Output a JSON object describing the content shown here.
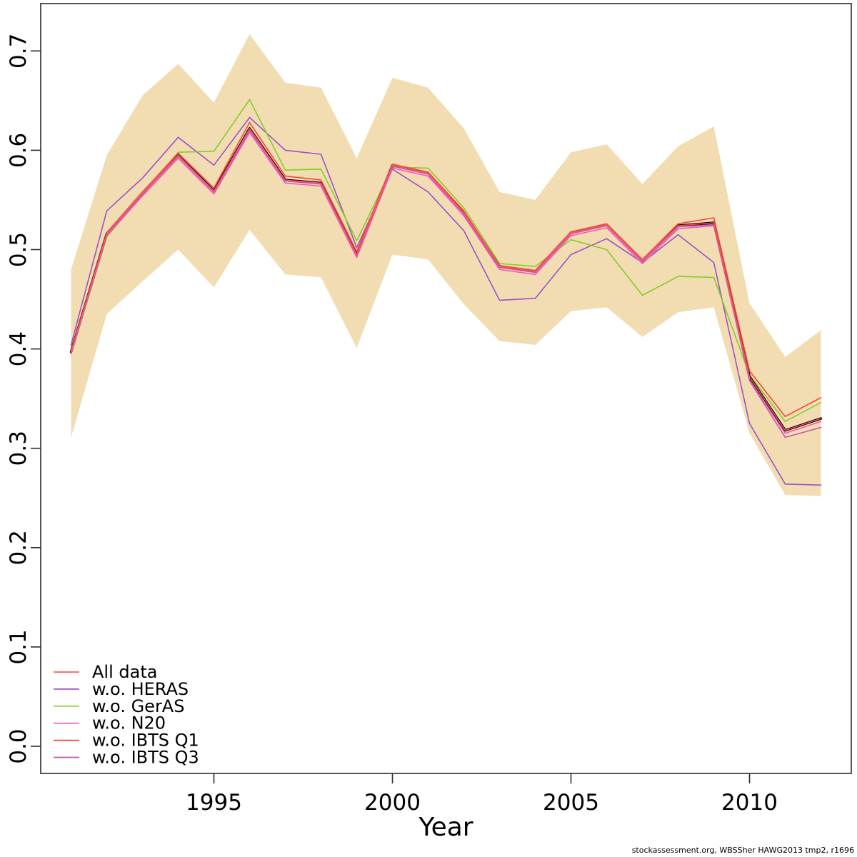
{
  "footer": {
    "credit": "stockassessment.org, WBSSher HAWG2013 tmp2, r1696"
  },
  "chart_data": {
    "type": "line",
    "title": "",
    "xlabel": "Year",
    "ylabel": "",
    "grid": false,
    "legend_position": "bottom-left",
    "xlim": [
      1990.15,
      2012.85
    ],
    "ylim": [
      0.0,
      0.75
    ],
    "x_ticks": [
      1995,
      2000,
      2005,
      2010
    ],
    "x_tick_labels": [
      "1995",
      "2000",
      "2005",
      "2010"
    ],
    "y_ticks": [
      0.0,
      0.1,
      0.2,
      0.3,
      0.4,
      0.5,
      0.6,
      0.7
    ],
    "y_tick_labels": [
      "0.0",
      "0.1",
      "0.2",
      "0.3",
      "0.4",
      "0.5",
      "0.6",
      "0.7"
    ],
    "x": [
      1991,
      1992,
      1993,
      1994,
      1995,
      1996,
      1997,
      1998,
      1999,
      2000,
      2001,
      2002,
      2003,
      2004,
      2005,
      2006,
      2007,
      2008,
      2009,
      2010,
      2011,
      2012
    ],
    "band": {
      "color": "#f2ddb2",
      "upper": [
        0.48,
        0.595,
        0.655,
        0.687,
        0.648,
        0.717,
        0.668,
        0.663,
        0.592,
        0.673,
        0.663,
        0.622,
        0.558,
        0.55,
        0.598,
        0.606,
        0.566,
        0.604,
        0.624,
        0.446,
        0.392,
        0.419
      ],
      "lower": [
        0.311,
        0.435,
        0.468,
        0.5,
        0.462,
        0.52,
        0.475,
        0.472,
        0.401,
        0.495,
        0.49,
        0.445,
        0.408,
        0.404,
        0.438,
        0.442,
        0.412,
        0.437,
        0.442,
        0.315,
        0.253,
        0.252
      ]
    },
    "base_run": {
      "color": "#000000",
      "values": [
        0.397,
        0.516,
        0.557,
        0.595,
        0.559,
        0.622,
        0.57,
        0.567,
        0.495,
        0.585,
        0.577,
        0.537,
        0.483,
        0.478,
        0.517,
        0.525,
        0.489,
        0.524,
        0.527,
        0.372,
        0.318,
        0.33
      ]
    },
    "series": [
      {
        "name": "All data",
        "color": "#fa5c55",
        "values": [
          0.397,
          0.516,
          0.557,
          0.595,
          0.559,
          0.622,
          0.57,
          0.567,
          0.495,
          0.585,
          0.577,
          0.537,
          0.483,
          0.478,
          0.517,
          0.525,
          0.489,
          0.524,
          0.527,
          0.372,
          0.318,
          0.33
        ]
      },
      {
        "name": "w.o. HERAS",
        "color": "#9a52c7",
        "values": [
          0.404,
          0.539,
          0.572,
          0.613,
          0.585,
          0.633,
          0.6,
          0.596,
          0.502,
          0.581,
          0.558,
          0.519,
          0.449,
          0.451,
          0.495,
          0.511,
          0.487,
          0.515,
          0.487,
          0.325,
          0.264,
          0.263
        ]
      },
      {
        "name": "w.o. GerAS",
        "color": "#84cc28",
        "values": [
          0.4,
          0.513,
          0.555,
          0.598,
          0.599,
          0.651,
          0.58,
          0.581,
          0.509,
          0.583,
          0.582,
          0.542,
          0.486,
          0.483,
          0.51,
          0.5,
          0.454,
          0.473,
          0.472,
          0.374,
          0.327,
          0.346
        ]
      },
      {
        "name": "w.o. N20",
        "color": "#f653c6",
        "values": [
          0.395,
          0.514,
          0.554,
          0.592,
          0.556,
          0.618,
          0.567,
          0.564,
          0.492,
          0.582,
          0.574,
          0.534,
          0.48,
          0.475,
          0.514,
          0.522,
          0.486,
          0.521,
          0.524,
          0.369,
          0.315,
          0.327
        ]
      },
      {
        "name": "w.o. IBTS Q1",
        "color": "#f4473b",
        "values": [
          0.398,
          0.517,
          0.558,
          0.597,
          0.562,
          0.628,
          0.574,
          0.57,
          0.498,
          0.586,
          0.578,
          0.539,
          0.484,
          0.479,
          0.518,
          0.526,
          0.49,
          0.526,
          0.532,
          0.378,
          0.332,
          0.351
        ]
      },
      {
        "name": "w.o. IBTS Q3",
        "color": "#c258ad",
        "values": [
          0.396,
          0.515,
          0.556,
          0.594,
          0.558,
          0.62,
          0.569,
          0.566,
          0.494,
          0.584,
          0.576,
          0.536,
          0.482,
          0.477,
          0.516,
          0.524,
          0.488,
          0.523,
          0.525,
          0.368,
          0.311,
          0.321
        ]
      }
    ]
  }
}
